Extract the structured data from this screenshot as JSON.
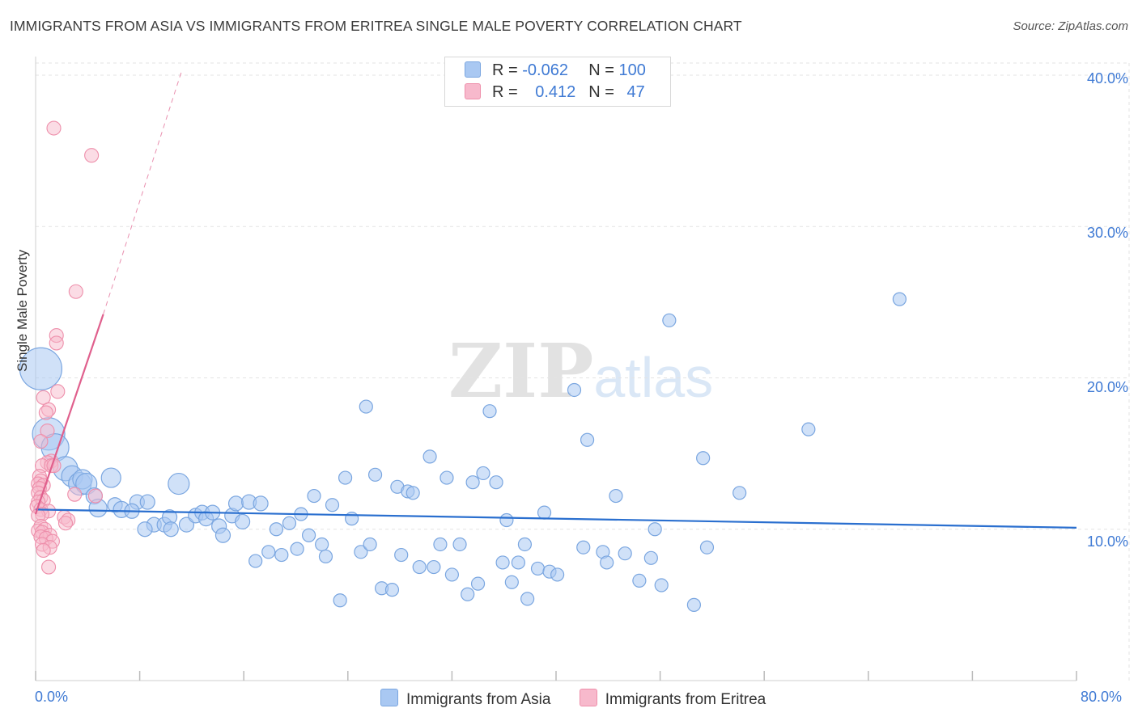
{
  "title": "IMMIGRANTS FROM ASIA VS IMMIGRANTS FROM ERITREA SINGLE MALE POVERTY CORRELATION CHART",
  "source": "Source: ZipAtlas.com",
  "watermark": {
    "zip": "ZIP",
    "atlas": "atlas"
  },
  "colors": {
    "asia_fill": "#a9c8f2",
    "asia_stroke": "#7aa6e0",
    "asia_line": "#2a6fcf",
    "eritrea_fill": "#f7b9cc",
    "eritrea_stroke": "#ee8fab",
    "eritrea_line": "#e0608d",
    "grid": "#e3e3e3",
    "tick_text": "#3f7ad4"
  },
  "legend": {
    "rows": [
      {
        "r_label": "R = ",
        "r_value": "-0.062",
        "n_label": "N = ",
        "n_value": "100"
      },
      {
        "r_label": "R = ",
        "r_value": "0.412",
        "n_label": "N = ",
        "n_value": "47"
      }
    ]
  },
  "bottom_legend": [
    "Immigrants from Asia",
    "Immigrants from Eritrea"
  ],
  "axis": {
    "ylabel": "Single Male Poverty",
    "y_ticks": [
      "10.0%",
      "20.0%",
      "30.0%",
      "40.0%"
    ],
    "x_ticks": [
      "0.0%",
      "80.0%"
    ]
  },
  "chart_data": {
    "type": "scatter",
    "xlabel": "",
    "ylabel": "Single Male Poverty",
    "xlim": [
      0,
      80
    ],
    "ylim": [
      0,
      40.8
    ],
    "grid": true,
    "legend_position": "top-center",
    "series": [
      {
        "name": "Immigrants from Asia",
        "trend": {
          "x": [
            0,
            80
          ],
          "y": [
            11.3,
            10.1
          ],
          "R": -0.062,
          "N": 100
        },
        "points": [
          [
            0.4,
            20.6,
            2.6
          ],
          [
            1.0,
            16.3,
            2.0
          ],
          [
            1.5,
            15.4,
            1.7
          ],
          [
            2.3,
            14.0,
            1.5
          ],
          [
            2.8,
            13.5,
            1.3
          ],
          [
            3.4,
            13.0,
            1.4
          ],
          [
            3.6,
            13.3,
            1.2
          ],
          [
            3.9,
            13.0,
            1.3
          ],
          [
            5.8,
            13.4,
            1.2
          ],
          [
            11.0,
            13.0,
            1.3
          ],
          [
            4.5,
            12.2,
            1.0
          ],
          [
            6.1,
            11.6,
            0.9
          ],
          [
            7.8,
            11.8,
            0.9
          ],
          [
            8.6,
            11.8,
            0.9
          ],
          [
            4.8,
            11.4,
            1.1
          ],
          [
            6.6,
            11.3,
            1.0
          ],
          [
            7.4,
            11.2,
            0.9
          ],
          [
            9.1,
            10.3,
            0.9
          ],
          [
            9.9,
            10.3,
            0.9
          ],
          [
            10.3,
            10.8,
            0.9
          ],
          [
            10.4,
            10.0,
            0.9
          ],
          [
            11.6,
            10.3,
            0.9
          ],
          [
            12.3,
            10.9,
            0.9
          ],
          [
            12.8,
            11.1,
            0.9
          ],
          [
            13.1,
            10.7,
            0.9
          ],
          [
            13.6,
            11.1,
            0.9
          ],
          [
            14.1,
            10.2,
            0.9
          ],
          [
            14.4,
            9.6,
            0.9
          ],
          [
            15.1,
            10.9,
            0.9
          ],
          [
            15.4,
            11.7,
            0.9
          ],
          [
            15.9,
            10.5,
            0.9
          ],
          [
            16.4,
            11.8,
            0.9
          ],
          [
            17.3,
            11.7,
            0.9
          ],
          [
            16.9,
            7.9,
            0.8
          ],
          [
            17.9,
            8.5,
            0.8
          ],
          [
            18.5,
            10.0,
            0.8
          ],
          [
            18.9,
            8.3,
            0.8
          ],
          [
            19.5,
            10.4,
            0.8
          ],
          [
            20.1,
            8.7,
            0.8
          ],
          [
            20.4,
            11.0,
            0.8
          ],
          [
            21.0,
            9.6,
            0.8
          ],
          [
            21.4,
            12.2,
            0.8
          ],
          [
            22.0,
            9.0,
            0.8
          ],
          [
            22.3,
            8.2,
            0.8
          ],
          [
            22.8,
            11.6,
            0.8
          ],
          [
            23.4,
            5.3,
            0.8
          ],
          [
            23.8,
            13.4,
            0.8
          ],
          [
            24.3,
            10.7,
            0.8
          ],
          [
            25.0,
            8.5,
            0.8
          ],
          [
            25.7,
            9.0,
            0.8
          ],
          [
            25.4,
            18.1,
            0.8
          ],
          [
            26.1,
            13.6,
            0.8
          ],
          [
            26.6,
            6.1,
            0.8
          ],
          [
            27.4,
            6.0,
            0.8
          ],
          [
            27.8,
            12.8,
            0.8
          ],
          [
            28.1,
            8.3,
            0.8
          ],
          [
            28.6,
            12.5,
            0.8
          ],
          [
            29.0,
            12.4,
            0.8
          ],
          [
            29.5,
            7.5,
            0.8
          ],
          [
            30.3,
            14.8,
            0.8
          ],
          [
            30.6,
            7.5,
            0.8
          ],
          [
            31.1,
            9.0,
            0.8
          ],
          [
            31.6,
            13.4,
            0.8
          ],
          [
            32.0,
            7.0,
            0.8
          ],
          [
            32.6,
            9.0,
            0.8
          ],
          [
            33.2,
            5.7,
            0.8
          ],
          [
            33.6,
            13.1,
            0.8
          ],
          [
            34.0,
            6.4,
            0.8
          ],
          [
            34.4,
            13.7,
            0.8
          ],
          [
            34.9,
            17.8,
            0.8
          ],
          [
            35.4,
            13.1,
            0.8
          ],
          [
            35.9,
            7.8,
            0.8
          ],
          [
            36.2,
            10.6,
            0.8
          ],
          [
            36.6,
            6.5,
            0.8
          ],
          [
            37.1,
            7.8,
            0.8
          ],
          [
            37.6,
            9.0,
            0.8
          ],
          [
            37.8,
            5.4,
            0.8
          ],
          [
            38.6,
            7.4,
            0.8
          ],
          [
            39.1,
            11.1,
            0.8
          ],
          [
            39.5,
            7.2,
            0.8
          ],
          [
            40.1,
            7.0,
            0.8
          ],
          [
            41.4,
            19.2,
            0.8
          ],
          [
            42.1,
            8.8,
            0.8
          ],
          [
            42.4,
            15.9,
            0.8
          ],
          [
            43.6,
            8.5,
            0.8
          ],
          [
            43.9,
            7.8,
            0.8
          ],
          [
            44.6,
            12.2,
            0.8
          ],
          [
            45.3,
            8.4,
            0.8
          ],
          [
            46.4,
            6.6,
            0.8
          ],
          [
            47.3,
            8.1,
            0.8
          ],
          [
            47.6,
            10.0,
            0.8
          ],
          [
            48.1,
            6.3,
            0.8
          ],
          [
            48.7,
            23.8,
            0.8
          ],
          [
            50.6,
            5.0,
            0.8
          ],
          [
            51.3,
            14.7,
            0.8
          ],
          [
            51.6,
            8.8,
            0.8
          ],
          [
            54.1,
            12.4,
            0.8
          ],
          [
            59.4,
            16.6,
            0.8
          ],
          [
            66.4,
            25.2,
            0.8
          ],
          [
            8.4,
            10.0,
            0.9
          ]
        ]
      },
      {
        "name": "Immigrants from Eritrea",
        "trend": {
          "x": [
            0,
            5.2
          ],
          "y": [
            11.0,
            24.2
          ],
          "x_dashed": [
            5.2,
            11.2
          ],
          "y_dashed": [
            24.2,
            40.2
          ],
          "R": 0.412,
          "N": 47
        },
        "points": [
          [
            1.4,
            36.5
          ],
          [
            4.3,
            34.7
          ],
          [
            3.1,
            25.7
          ],
          [
            1.6,
            22.8
          ],
          [
            1.6,
            22.3
          ],
          [
            1.7,
            19.1
          ],
          [
            0.6,
            18.7
          ],
          [
            1.0,
            17.9
          ],
          [
            0.8,
            17.7
          ],
          [
            0.9,
            16.5
          ],
          [
            0.4,
            15.8
          ],
          [
            1.2,
            14.5
          ],
          [
            0.9,
            14.4
          ],
          [
            0.5,
            14.2
          ],
          [
            1.2,
            14.2
          ],
          [
            1.4,
            14.2
          ],
          [
            0.3,
            13.5
          ],
          [
            0.4,
            13.2
          ],
          [
            0.2,
            13.0
          ],
          [
            0.6,
            12.9
          ],
          [
            0.3,
            12.7
          ],
          [
            0.2,
            12.4
          ],
          [
            0.4,
            12.1
          ],
          [
            0.6,
            11.9
          ],
          [
            3.0,
            12.3
          ],
          [
            4.6,
            12.2
          ],
          [
            0.2,
            11.8
          ],
          [
            0.1,
            11.5
          ],
          [
            0.4,
            11.3
          ],
          [
            1.0,
            11.2
          ],
          [
            0.5,
            11.0
          ],
          [
            0.2,
            10.9
          ],
          [
            2.2,
            10.8
          ],
          [
            2.5,
            10.6
          ],
          [
            2.3,
            10.4
          ],
          [
            0.4,
            10.2
          ],
          [
            0.7,
            10.0
          ],
          [
            0.2,
            9.9
          ],
          [
            0.5,
            9.8
          ],
          [
            1.1,
            9.6
          ],
          [
            0.4,
            9.5
          ],
          [
            0.8,
            9.4
          ],
          [
            1.3,
            9.2
          ],
          [
            0.5,
            9.0
          ],
          [
            1.1,
            8.8
          ],
          [
            0.6,
            8.6
          ],
          [
            1.0,
            7.5
          ]
        ]
      }
    ]
  }
}
